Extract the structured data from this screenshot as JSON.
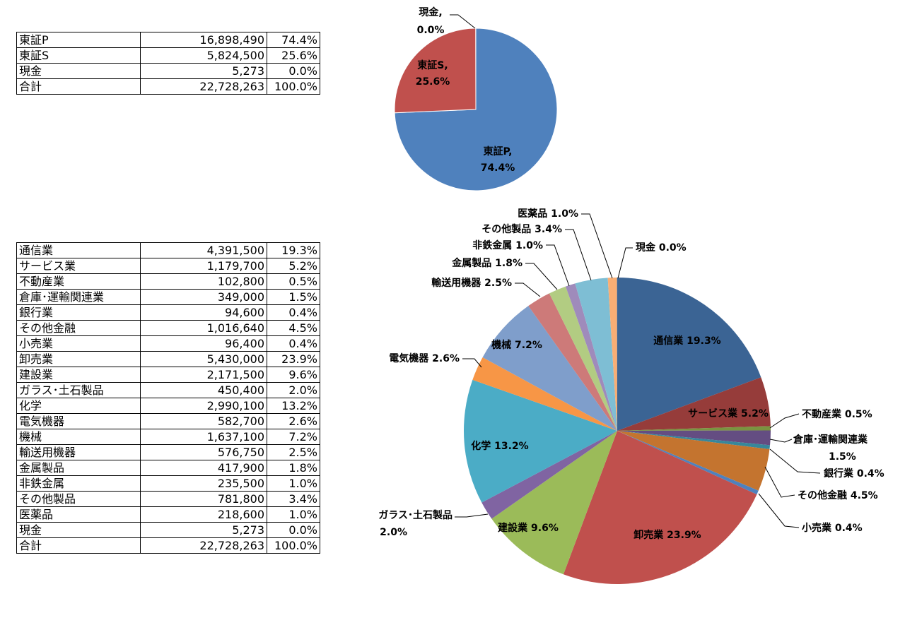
{
  "market_table": {
    "rows": [
      {
        "name": "東証P",
        "value": "16,898,490",
        "pct": "74.4%"
      },
      {
        "name": "東証S",
        "value": "5,824,500",
        "pct": "25.6%"
      },
      {
        "name": "現金",
        "value": "5,273",
        "pct": "0.0%"
      },
      {
        "name": "合計",
        "value": "22,728,263",
        "pct": "100.0%"
      }
    ]
  },
  "sector_table": {
    "rows": [
      {
        "name": "通信業",
        "value": "4,391,500",
        "pct": "19.3%"
      },
      {
        "name": "サービス業",
        "value": "1,179,700",
        "pct": "5.2%"
      },
      {
        "name": "不動産業",
        "value": "102,800",
        "pct": "0.5%"
      },
      {
        "name": "倉庫･運輸関連業",
        "value": "349,000",
        "pct": "1.5%"
      },
      {
        "name": "銀行業",
        "value": "94,600",
        "pct": "0.4%"
      },
      {
        "name": "その他金融",
        "value": "1,016,640",
        "pct": "4.5%"
      },
      {
        "name": "小売業",
        "value": "96,400",
        "pct": "0.4%"
      },
      {
        "name": "卸売業",
        "value": "5,430,000",
        "pct": "23.9%"
      },
      {
        "name": "建設業",
        "value": "2,171,500",
        "pct": "9.6%"
      },
      {
        "name": "ガラス･土石製品",
        "value": "450,400",
        "pct": "2.0%"
      },
      {
        "name": "化学",
        "value": "2,990,100",
        "pct": "13.2%"
      },
      {
        "name": "電気機器",
        "value": "582,700",
        "pct": "2.6%"
      },
      {
        "name": "機械",
        "value": "1,637,100",
        "pct": "7.2%"
      },
      {
        "name": "輸送用機器",
        "value": "576,750",
        "pct": "2.5%"
      },
      {
        "name": "金属製品",
        "value": "417,900",
        "pct": "1.8%"
      },
      {
        "name": "非鉄金属",
        "value": "235,500",
        "pct": "1.0%"
      },
      {
        "name": "その他製品",
        "value": "781,800",
        "pct": "3.4%"
      },
      {
        "name": "医薬品",
        "value": "218,600",
        "pct": "1.0%"
      },
      {
        "name": "現金",
        "value": "5,273",
        "pct": "0.0%"
      },
      {
        "name": "合計",
        "value": "22,728,263",
        "pct": "100.0%"
      }
    ]
  },
  "chart_data": [
    {
      "type": "pie",
      "title": "",
      "start_angle_deg": 0,
      "direction": "clockwise",
      "slices": [
        {
          "name": "東証P",
          "value": 16898490,
          "label": [
            "東証P,",
            "74.4%"
          ],
          "color": "#4f81bd"
        },
        {
          "name": "東証S",
          "value": 5824500,
          "label": [
            "東証S,",
            "25.6%"
          ],
          "color": "#c0504d"
        },
        {
          "name": "現金",
          "value": 5273,
          "label": [
            "現金,",
            "0.0%"
          ],
          "color": "#9bbb59"
        }
      ]
    },
    {
      "type": "pie",
      "title": "",
      "start_angle_deg": 0,
      "direction": "clockwise",
      "slices": [
        {
          "name": "通信業",
          "value": 4391500,
          "label": [
            "通信業 19.3%"
          ],
          "color": "#3b6494"
        },
        {
          "name": "サービス業",
          "value": 1179700,
          "label": [
            "サービス業 5.2%"
          ],
          "color": "#963c3a"
        },
        {
          "name": "不動産業",
          "value": 102800,
          "label": [
            "不動産業 0.5%"
          ],
          "color": "#7a9440"
        },
        {
          "name": "倉庫･運輸関連業",
          "value": 349000,
          "label": [
            "倉庫･運輸関連業",
            "1.5%"
          ],
          "color": "#644d82"
        },
        {
          "name": "銀行業",
          "value": 94600,
          "label": [
            "銀行業 0.4%"
          ],
          "color": "#37879b"
        },
        {
          "name": "その他金融",
          "value": 1016640,
          "label": [
            "その他金融 4.5%"
          ],
          "color": "#c4742f"
        },
        {
          "name": "小売業",
          "value": 96400,
          "label": [
            "小売業 0.4%"
          ],
          "color": "#4f81bd"
        },
        {
          "name": "卸売業",
          "value": 5430000,
          "label": [
            "卸売業 23.9%"
          ],
          "color": "#c0504d"
        },
        {
          "name": "建設業",
          "value": 2171500,
          "label": [
            "建設業 9.6%"
          ],
          "color": "#9bbb59"
        },
        {
          "name": "ガラス･土石製品",
          "value": 450400,
          "label": [
            "ガラス･土石製品",
            "2.0%"
          ],
          "color": "#8064a2"
        },
        {
          "name": "化学",
          "value": 2990100,
          "label": [
            "化学 13.2%"
          ],
          "color": "#4bacc6"
        },
        {
          "name": "電気機器",
          "value": 582700,
          "label": [
            "電気機器 2.6%"
          ],
          "color": "#f79646"
        },
        {
          "name": "機械",
          "value": 1637100,
          "label": [
            "機械 7.2%"
          ],
          "color": "#7f9ecb"
        },
        {
          "name": "輸送用機器",
          "value": 576750,
          "label": [
            "輸送用機器 2.5%"
          ],
          "color": "#cd7a79"
        },
        {
          "name": "金属製品",
          "value": 417900,
          "label": [
            "金属製品 1.8%"
          ],
          "color": "#b2cc82"
        },
        {
          "name": "非鉄金属",
          "value": 235500,
          "label": [
            "非鉄金属 1.0%"
          ],
          "color": "#9f8bbb"
        },
        {
          "name": "その他製品",
          "value": 781800,
          "label": [
            "その他製品 3.4%"
          ],
          "color": "#7ebed4"
        },
        {
          "name": "医薬品",
          "value": 218600,
          "label": [
            "医薬品 1.0%"
          ],
          "color": "#f9ae74"
        },
        {
          "name": "現金",
          "value": 5273,
          "label": [
            "現金 0.0%"
          ],
          "color": "#3b6494"
        }
      ]
    }
  ]
}
